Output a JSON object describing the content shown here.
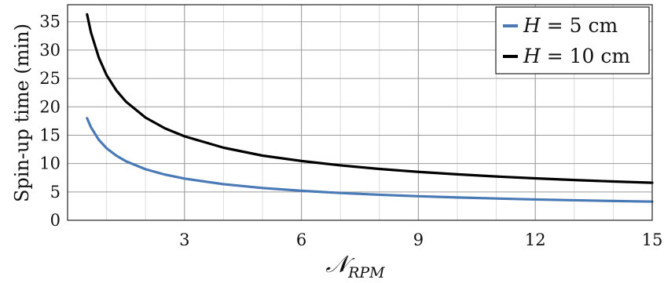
{
  "chart_data": {
    "type": "line",
    "xlabel": "𝒩RPM",
    "xlabel_main": "𝒩",
    "xlabel_sub": "RPM",
    "ylabel": "Spin-up time (min)",
    "xlim": [
      0,
      15
    ],
    "ylim": [
      0,
      38
    ],
    "xticks": [
      3,
      6,
      9,
      12,
      15
    ],
    "yticks": [
      0,
      5,
      10,
      15,
      20,
      25,
      30,
      35
    ],
    "grid": true,
    "legend_position": "top-right",
    "series": [
      {
        "name": "H = 5 cm",
        "legend_var": "H",
        "legend_rest": " = 5 cm",
        "color": "#4a7ab5",
        "x": [
          0.5,
          0.6,
          0.8,
          1,
          1.25,
          1.5,
          2,
          2.5,
          3,
          4,
          5,
          6,
          7,
          8,
          9,
          10,
          11,
          12,
          13,
          14,
          15
        ],
        "y": [
          18.0,
          16.4,
          14.2,
          12.7,
          11.4,
          10.4,
          9.0,
          8.05,
          7.35,
          6.36,
          5.69,
          5.2,
          4.81,
          4.5,
          4.24,
          4.02,
          3.84,
          3.67,
          3.53,
          3.4,
          3.29
        ]
      },
      {
        "name": "H = 10 cm",
        "legend_var": "H",
        "legend_rest": " = 10 cm",
        "color": "#000000",
        "x": [
          0.5,
          0.6,
          0.8,
          1,
          1.25,
          1.5,
          2,
          2.5,
          3,
          4,
          5,
          6,
          7,
          8,
          9,
          10,
          11,
          12,
          13,
          14,
          15
        ],
        "y": [
          36.3,
          33.1,
          28.7,
          25.6,
          22.9,
          20.9,
          18.1,
          16.2,
          14.8,
          12.8,
          11.4,
          10.45,
          9.68,
          9.05,
          8.53,
          8.1,
          7.72,
          7.39,
          7.1,
          6.84,
          6.61
        ]
      }
    ]
  }
}
